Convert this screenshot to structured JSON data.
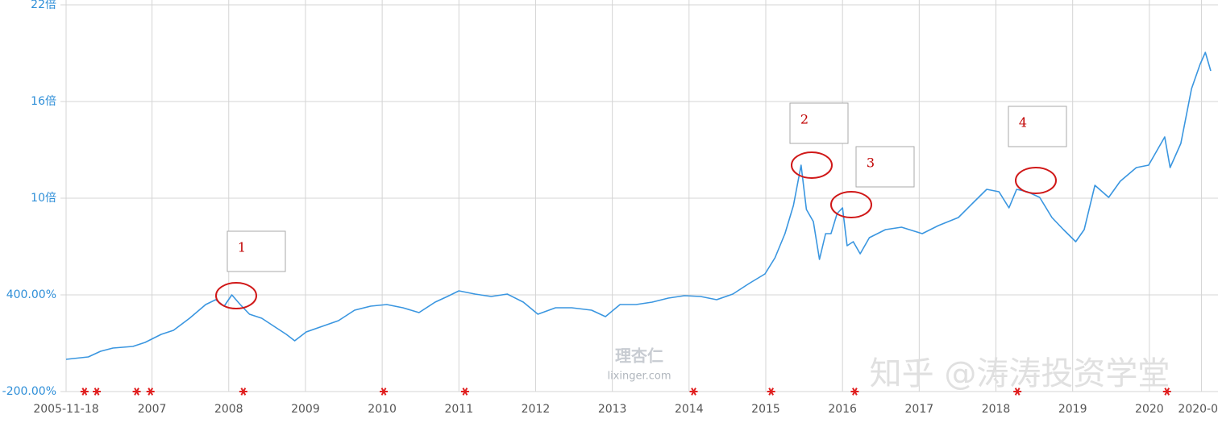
{
  "chart_data": {
    "type": "line",
    "watermarks": [
      "理杏仁",
      "lixinger.com",
      "知乎 @涛涛投资学堂"
    ],
    "annotations": [
      "1",
      "2",
      "3",
      "4"
    ],
    "xlim": [
      2005.88,
      2020.8
    ],
    "xticks": [
      {
        "value": 2005.88,
        "label": "2005-11-18"
      },
      2007,
      2008,
      2009,
      2010,
      2011,
      2012,
      2013,
      2014,
      2015,
      2016,
      2017,
      2018,
      2019,
      2020,
      {
        "value": 2020.68,
        "label": "2020-0"
      }
    ],
    "ylim": [
      -200,
      2200
    ],
    "yticks": [
      {
        "value": -200,
        "label": "-200.00%"
      },
      {
        "value": 400,
        "label": "400.00%"
      },
      {
        "value": 1000,
        "label": "10倍"
      },
      {
        "value": 1600,
        "label": "16倍"
      },
      {
        "value": 2200,
        "label": "22倍"
      }
    ],
    "grid": true,
    "series": [
      {
        "color": "#3a96e0",
        "x": [
          2005.88,
          2006.17,
          2006.33,
          2006.49,
          2006.75,
          2006.91,
          2007.12,
          2007.28,
          2007.49,
          2007.7,
          2007.83,
          2007.94,
          2008.04,
          2008.15,
          2008.27,
          2008.43,
          2008.59,
          2008.75,
          2008.86,
          2009.01,
          2009.22,
          2009.43,
          2009.64,
          2009.85,
          2010.06,
          2010.27,
          2010.48,
          2010.69,
          2010.85,
          2011.0,
          2011.21,
          2011.42,
          2011.63,
          2011.84,
          2012.03,
          2012.26,
          2012.47,
          2012.73,
          2012.91,
          2013.1,
          2013.31,
          2013.52,
          2013.73,
          2013.94,
          2014.15,
          2014.36,
          2014.57,
          2014.78,
          2014.99,
          2015.12,
          2015.25,
          2015.36,
          2015.46,
          2015.53,
          2015.62,
          2015.7,
          2015.78,
          2015.85,
          2015.93,
          2016.0,
          2016.06,
          2016.14,
          2016.23,
          2016.35,
          2016.56,
          2016.77,
          2017.04,
          2017.25,
          2017.51,
          2017.72,
          2017.88,
          2018.04,
          2018.17,
          2018.27,
          2018.41,
          2018.57,
          2018.73,
          2018.88,
          2019.04,
          2019.15,
          2019.29,
          2019.47,
          2019.62,
          2019.83,
          2019.99,
          2020.2,
          2020.27,
          2020.41,
          2020.55,
          2020.66,
          2020.73,
          2020.8
        ],
        "values": [
          0,
          15,
          50,
          70,
          80,
          105,
          155,
          180,
          255,
          340,
          370,
          330,
          400,
          340,
          280,
          255,
          205,
          155,
          115,
          170,
          205,
          240,
          305,
          330,
          340,
          320,
          290,
          355,
          390,
          425,
          405,
          390,
          405,
          355,
          280,
          320,
          320,
          305,
          265,
          340,
          340,
          355,
          380,
          395,
          390,
          370,
          405,
          470,
          530,
          630,
          780,
          955,
          1205,
          930,
          855,
          620,
          780,
          780,
          905,
          940,
          705,
          730,
          655,
          755,
          805,
          820,
          780,
          830,
          880,
          980,
          1055,
          1040,
          940,
          1055,
          1040,
          1005,
          880,
          805,
          730,
          805,
          1080,
          1005,
          1105,
          1190,
          1205,
          1380,
          1190,
          1340,
          1680,
          1830,
          1905,
          1790
        ]
      }
    ],
    "event_markers": {
      "color": "#e02020",
      "x": [
        2006.12,
        2006.28,
        2006.8,
        2006.98,
        2008.19,
        2010.02,
        2011.08,
        2014.06,
        2015.07,
        2016.16,
        2018.28,
        2020.23
      ]
    }
  }
}
